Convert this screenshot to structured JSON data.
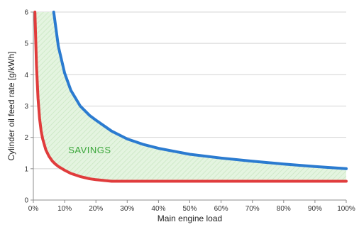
{
  "chart_data": {
    "type": "line",
    "title": "",
    "xlabel": "Main engine load",
    "ylabel": "Cylinder oil feed rate [g/kWh]",
    "xlim": [
      0,
      100
    ],
    "ylim": [
      0,
      6
    ],
    "x_unit": "%",
    "x_ticks": [
      0,
      10,
      20,
      30,
      40,
      50,
      60,
      70,
      80,
      90,
      100
    ],
    "x_tick_labels": [
      "0%",
      "10%",
      "20%",
      "30%",
      "40%",
      "50%",
      "60%",
      "70%",
      "80%",
      "90%",
      "100%"
    ],
    "y_ticks": [
      0,
      1,
      2,
      3,
      4,
      5,
      6
    ],
    "y_tick_labels": [
      "0",
      "1",
      "2",
      "3",
      "4",
      "5",
      "6"
    ],
    "grid": "horizontal",
    "legend": "none",
    "series": [
      {
        "color": "#2b7bd0",
        "x": [
          6.5,
          8,
          10,
          12,
          15,
          18,
          20,
          25,
          30,
          35,
          40,
          50,
          60,
          70,
          80,
          90,
          100
        ],
        "y": [
          6.0,
          4.9,
          4.05,
          3.5,
          3.0,
          2.7,
          2.55,
          2.2,
          1.95,
          1.78,
          1.65,
          1.46,
          1.34,
          1.24,
          1.15,
          1.07,
          1.0
        ]
      },
      {
        "color": "#e03c3c",
        "x": [
          0.5,
          1,
          1.5,
          2,
          2.5,
          3,
          4,
          5,
          6,
          7,
          8,
          10,
          12,
          15,
          18,
          20,
          25,
          30,
          40,
          50,
          60,
          70,
          80,
          90,
          100
        ],
        "y": [
          6.0,
          4.3,
          3.25,
          2.6,
          2.2,
          1.95,
          1.6,
          1.4,
          1.25,
          1.15,
          1.07,
          0.95,
          0.85,
          0.75,
          0.68,
          0.65,
          0.6,
          0.6,
          0.6,
          0.6,
          0.6,
          0.6,
          0.6,
          0.6,
          0.6
        ]
      }
    ],
    "annotations": [
      {
        "text": "SAVINGS",
        "x": 18,
        "y": 1.5,
        "color": "#3aa63a"
      }
    ],
    "fill_between": {
      "color": "#d9f0d3",
      "hatch_color": "#b9dfb0"
    }
  }
}
